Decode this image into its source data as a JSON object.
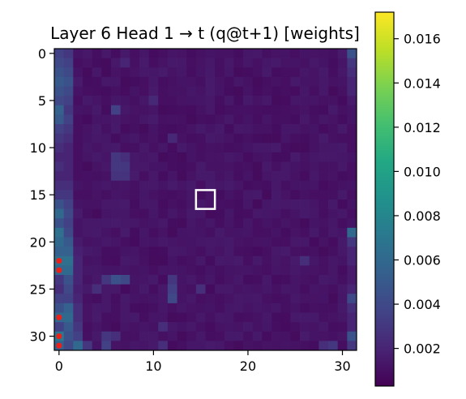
{
  "chart_data": {
    "type": "heatmap",
    "title": "Layer 6 Head 1 → t (q@t+1) [weights]",
    "rows": 32,
    "cols": 32,
    "x_ticks": [
      0,
      10,
      20,
      30
    ],
    "y_ticks": [
      0,
      5,
      10,
      15,
      20,
      25,
      30
    ],
    "colorbar": {
      "colormap": "viridis",
      "min": 0.0003,
      "max": 0.0172,
      "ticks": [
        0.002,
        0.004,
        0.006,
        0.008,
        0.01,
        0.012,
        0.014,
        0.016
      ],
      "tick_labels": [
        "0.002",
        "0.004",
        "0.006",
        "0.008",
        "0.010",
        "0.012",
        "0.014",
        "0.016"
      ]
    },
    "base_value": 0.0008,
    "column_profiles": [
      {
        "col": 0,
        "values": [
          0.0035,
          0.004,
          0.0045,
          0.005,
          0.0045,
          0.004,
          0.0055,
          0.005,
          0.0035,
          0.003,
          0.0025,
          0.002,
          0.0025,
          0.002,
          0.0025,
          0.003,
          0.0045,
          0.006,
          0.0045,
          0.0065,
          0.006,
          0.0055,
          0.0065,
          0.006,
          0.003,
          0.0025,
          0.0035,
          0.0045,
          0.006,
          0.0035,
          0.007,
          0.0055
        ]
      },
      {
        "col": 1,
        "values": [
          0.003,
          0.0035,
          0.004,
          0.0045,
          0.004,
          0.0035,
          0.003,
          0.0035,
          0.003,
          0.0025,
          0.002,
          0.002,
          0.002,
          0.002,
          0.0025,
          0.003,
          0.0035,
          0.004,
          0.0035,
          0.004,
          0.005,
          0.0055,
          0.0065,
          0.006,
          0.0045,
          0.004,
          0.0035,
          0.0055,
          0.006,
          0.005,
          0.0045,
          0.004
        ]
      },
      {
        "col": 2,
        "values": [
          0.0012,
          0.001,
          0.0012,
          0.0015,
          0.0012,
          0.001,
          0.0012,
          0.001,
          0.001,
          0.001,
          0.001,
          0.001,
          0.001,
          0.001,
          0.0012,
          0.001,
          0.0012,
          0.0015,
          0.0012,
          0.0012,
          0.0015,
          0.0018,
          0.002,
          0.002,
          0.002,
          0.0018,
          0.002,
          0.0025,
          0.0025,
          0.003,
          0.0035,
          0.006
        ]
      },
      {
        "col": 31,
        "values": [
          0.0045,
          0.003,
          0.0025,
          0.002,
          0.002,
          0.0015,
          0.0012,
          0.0012,
          0.001,
          0.001,
          0.001,
          0.0012,
          0.001,
          0.001,
          0.0012,
          0.001,
          0.0012,
          0.001,
          0.0012,
          0.006,
          0.003,
          0.002,
          0.002,
          0.0015,
          0.0015,
          0.002,
          0.004,
          0.0025,
          0.002,
          0.002,
          0.0045,
          0.003
        ]
      }
    ],
    "highlight_cells": [
      {
        "row": 6,
        "col": 6,
        "value": 0.0035
      },
      {
        "row": 11,
        "col": 6,
        "value": 0.003
      },
      {
        "row": 12,
        "col": 6,
        "value": 0.003
      },
      {
        "row": 12,
        "col": 7,
        "value": 0.003
      },
      {
        "row": 13,
        "col": 6,
        "value": 0.0028
      },
      {
        "row": 13,
        "col": 7,
        "value": 0.0028
      },
      {
        "row": 11,
        "col": 7,
        "value": 0.0025
      },
      {
        "row": 24,
        "col": 6,
        "value": 0.0045
      },
      {
        "row": 24,
        "col": 7,
        "value": 0.004
      },
      {
        "row": 24,
        "col": 5,
        "value": 0.003
      },
      {
        "row": 25,
        "col": 12,
        "value": 0.0035
      },
      {
        "row": 26,
        "col": 12,
        "value": 0.004
      },
      {
        "row": 24,
        "col": 12,
        "value": 0.003
      },
      {
        "row": 25,
        "col": 4,
        "value": 0.0025
      },
      {
        "row": 30,
        "col": 5,
        "value": 0.003
      },
      {
        "row": 31,
        "col": 5,
        "value": 0.0035
      },
      {
        "row": 31,
        "col": 3,
        "value": 0.003
      },
      {
        "row": 30,
        "col": 6,
        "value": 0.0025
      },
      {
        "row": 29,
        "col": 11,
        "value": 0.0025
      },
      {
        "row": 31,
        "col": 11,
        "value": 0.0025
      },
      {
        "row": 31,
        "col": 29,
        "value": 0.003
      },
      {
        "row": 31,
        "col": 28,
        "value": 0.0025
      },
      {
        "row": 22,
        "col": 26,
        "value": 0.0025
      },
      {
        "row": 25,
        "col": 15,
        "value": 0.0025
      },
      {
        "row": 5,
        "col": 10,
        "value": 0.0022
      },
      {
        "row": 1,
        "col": 7,
        "value": 0.002
      },
      {
        "row": 9,
        "col": 12,
        "value": 0.0022
      }
    ],
    "markers": [
      {
        "row": 22,
        "col": 0,
        "color": "#e8221b"
      },
      {
        "row": 23,
        "col": 0,
        "color": "#e8221b"
      },
      {
        "row": 28,
        "col": 0,
        "color": "#e8221b"
      },
      {
        "row": 30,
        "col": 0,
        "color": "#e8221b"
      },
      {
        "row": 31,
        "col": 0,
        "color": "#e8221b"
      }
    ],
    "query_box": {
      "row_start": 15,
      "row_end": 17,
      "col_start": 15,
      "col_end": 17,
      "color": "#ffffff"
    }
  }
}
